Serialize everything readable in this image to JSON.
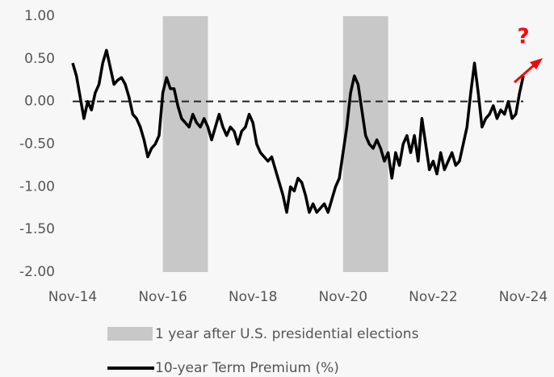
{
  "chart_data": {
    "type": "line",
    "categories": [
      "Nov-14",
      null,
      null,
      null,
      null,
      null,
      null,
      null,
      null,
      null,
      null,
      null,
      null,
      null,
      null,
      null,
      null,
      null,
      null,
      null,
      null,
      null,
      null,
      null,
      "Nov-16",
      null,
      null,
      null,
      null,
      null,
      null,
      null,
      null,
      null,
      null,
      null,
      null,
      null,
      null,
      null,
      null,
      null,
      null,
      null,
      null,
      null,
      null,
      null,
      "Nov-18",
      null,
      null,
      null,
      null,
      null,
      null,
      null,
      null,
      null,
      null,
      null,
      null,
      null,
      null,
      null,
      null,
      null,
      null,
      null,
      null,
      null,
      null,
      null,
      "Nov-20",
      null,
      null,
      null,
      null,
      null,
      null,
      null,
      null,
      null,
      null,
      null,
      null,
      null,
      null,
      null,
      null,
      null,
      null,
      null,
      null,
      null,
      null,
      null,
      "Nov-22",
      null,
      null,
      null,
      null,
      null,
      null,
      null,
      null,
      null,
      null,
      null,
      null,
      null,
      null,
      null,
      null,
      null,
      null,
      null,
      null,
      null,
      null,
      null,
      "Nov-24"
    ],
    "series": [
      {
        "name": "10-year Term Premium (%)",
        "color": "#000000",
        "values": [
          0.45,
          0.3,
          0.05,
          -0.2,
          0.0,
          -0.1,
          0.1,
          0.2,
          0.45,
          0.6,
          0.4,
          0.2,
          0.25,
          0.28,
          0.2,
          0.05,
          -0.15,
          -0.2,
          -0.3,
          -0.45,
          -0.65,
          -0.55,
          -0.5,
          -0.4,
          0.1,
          0.28,
          0.15,
          0.15,
          -0.05,
          -0.2,
          -0.25,
          -0.3,
          -0.15,
          -0.25,
          -0.3,
          -0.2,
          -0.3,
          -0.45,
          -0.3,
          -0.15,
          -0.3,
          -0.4,
          -0.3,
          -0.35,
          -0.5,
          -0.35,
          -0.3,
          -0.15,
          -0.25,
          -0.5,
          -0.6,
          -0.65,
          -0.7,
          -0.65,
          -0.8,
          -0.95,
          -1.1,
          -1.3,
          -1.0,
          -1.05,
          -0.9,
          -0.95,
          -1.1,
          -1.3,
          -1.2,
          -1.3,
          -1.25,
          -1.2,
          -1.3,
          -1.15,
          -1.0,
          -0.9,
          -0.6,
          -0.3,
          0.1,
          0.3,
          0.2,
          -0.1,
          -0.4,
          -0.5,
          -0.55,
          -0.45,
          -0.55,
          -0.7,
          -0.6,
          -0.9,
          -0.6,
          -0.75,
          -0.5,
          -0.4,
          -0.6,
          -0.4,
          -0.7,
          -0.2,
          -0.5,
          -0.8,
          -0.7,
          -0.85,
          -0.6,
          -0.8,
          -0.7,
          -0.6,
          -0.75,
          -0.7,
          -0.5,
          -0.3,
          0.1,
          0.45,
          0.1,
          -0.3,
          -0.2,
          -0.15,
          -0.05,
          -0.2,
          -0.1,
          -0.15,
          0.0,
          -0.2,
          -0.15,
          0.1,
          0.3
        ]
      }
    ],
    "highlight": {
      "name": "1 year after U.S. presidential elections",
      "color": "#c8c8c8",
      "ranges": [
        [
          24,
          36
        ],
        [
          72,
          84
        ]
      ]
    },
    "reference_line": 0,
    "ylim": [
      -2,
      1
    ],
    "yticks": [
      {
        "value": 1,
        "label": "1.00"
      },
      {
        "value": 0.5,
        "label": "0.50"
      },
      {
        "value": 0,
        "label": "0.00"
      },
      {
        "value": -0.5,
        "label": "-0.50"
      },
      {
        "value": -1,
        "label": "-1.00"
      },
      {
        "value": -1.5,
        "label": "-1.50"
      },
      {
        "value": -2,
        "label": "-2.00"
      }
    ],
    "annotation": {
      "text": "?",
      "color": "#ff0000"
    }
  }
}
